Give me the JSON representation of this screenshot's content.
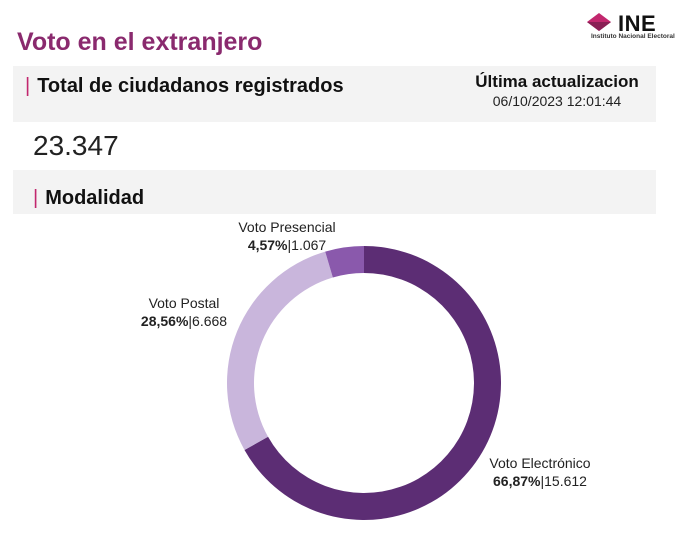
{
  "header": {
    "title": "Voto en el extranjero",
    "logo_name": "INE",
    "logo_subtitle": "Instituto Nacional Electoral"
  },
  "registered": {
    "title": "Total de ciudadanos registrados",
    "update_label": "Última actualizacion",
    "update_date": "06/10/2023 12:01:44",
    "total": "23.347"
  },
  "modality": {
    "title": "Modalidad"
  },
  "colors": {
    "accent": "#c2276e",
    "title": "#8a2a6e",
    "electronico": "#5c2d74",
    "postal": "#c9b6dc",
    "presencial": "#8a59ac"
  },
  "chart_data": {
    "type": "pie",
    "variant": "donut",
    "title": "Modalidad",
    "slices": [
      {
        "name": "Voto Electrónico",
        "percent": "66,87%",
        "count": "15.612",
        "value": 15612,
        "color": "#5c2d74",
        "separator": "|"
      },
      {
        "name": "Voto Postal",
        "percent": "28,56%",
        "count": "6.668",
        "value": 6668,
        "color": "#c9b6dc",
        "separator": "|"
      },
      {
        "name": "Voto Presencial",
        "percent": "4,57%",
        "count": "1.067",
        "value": 1067,
        "color": "#8a59ac",
        "separator": "|"
      }
    ]
  }
}
